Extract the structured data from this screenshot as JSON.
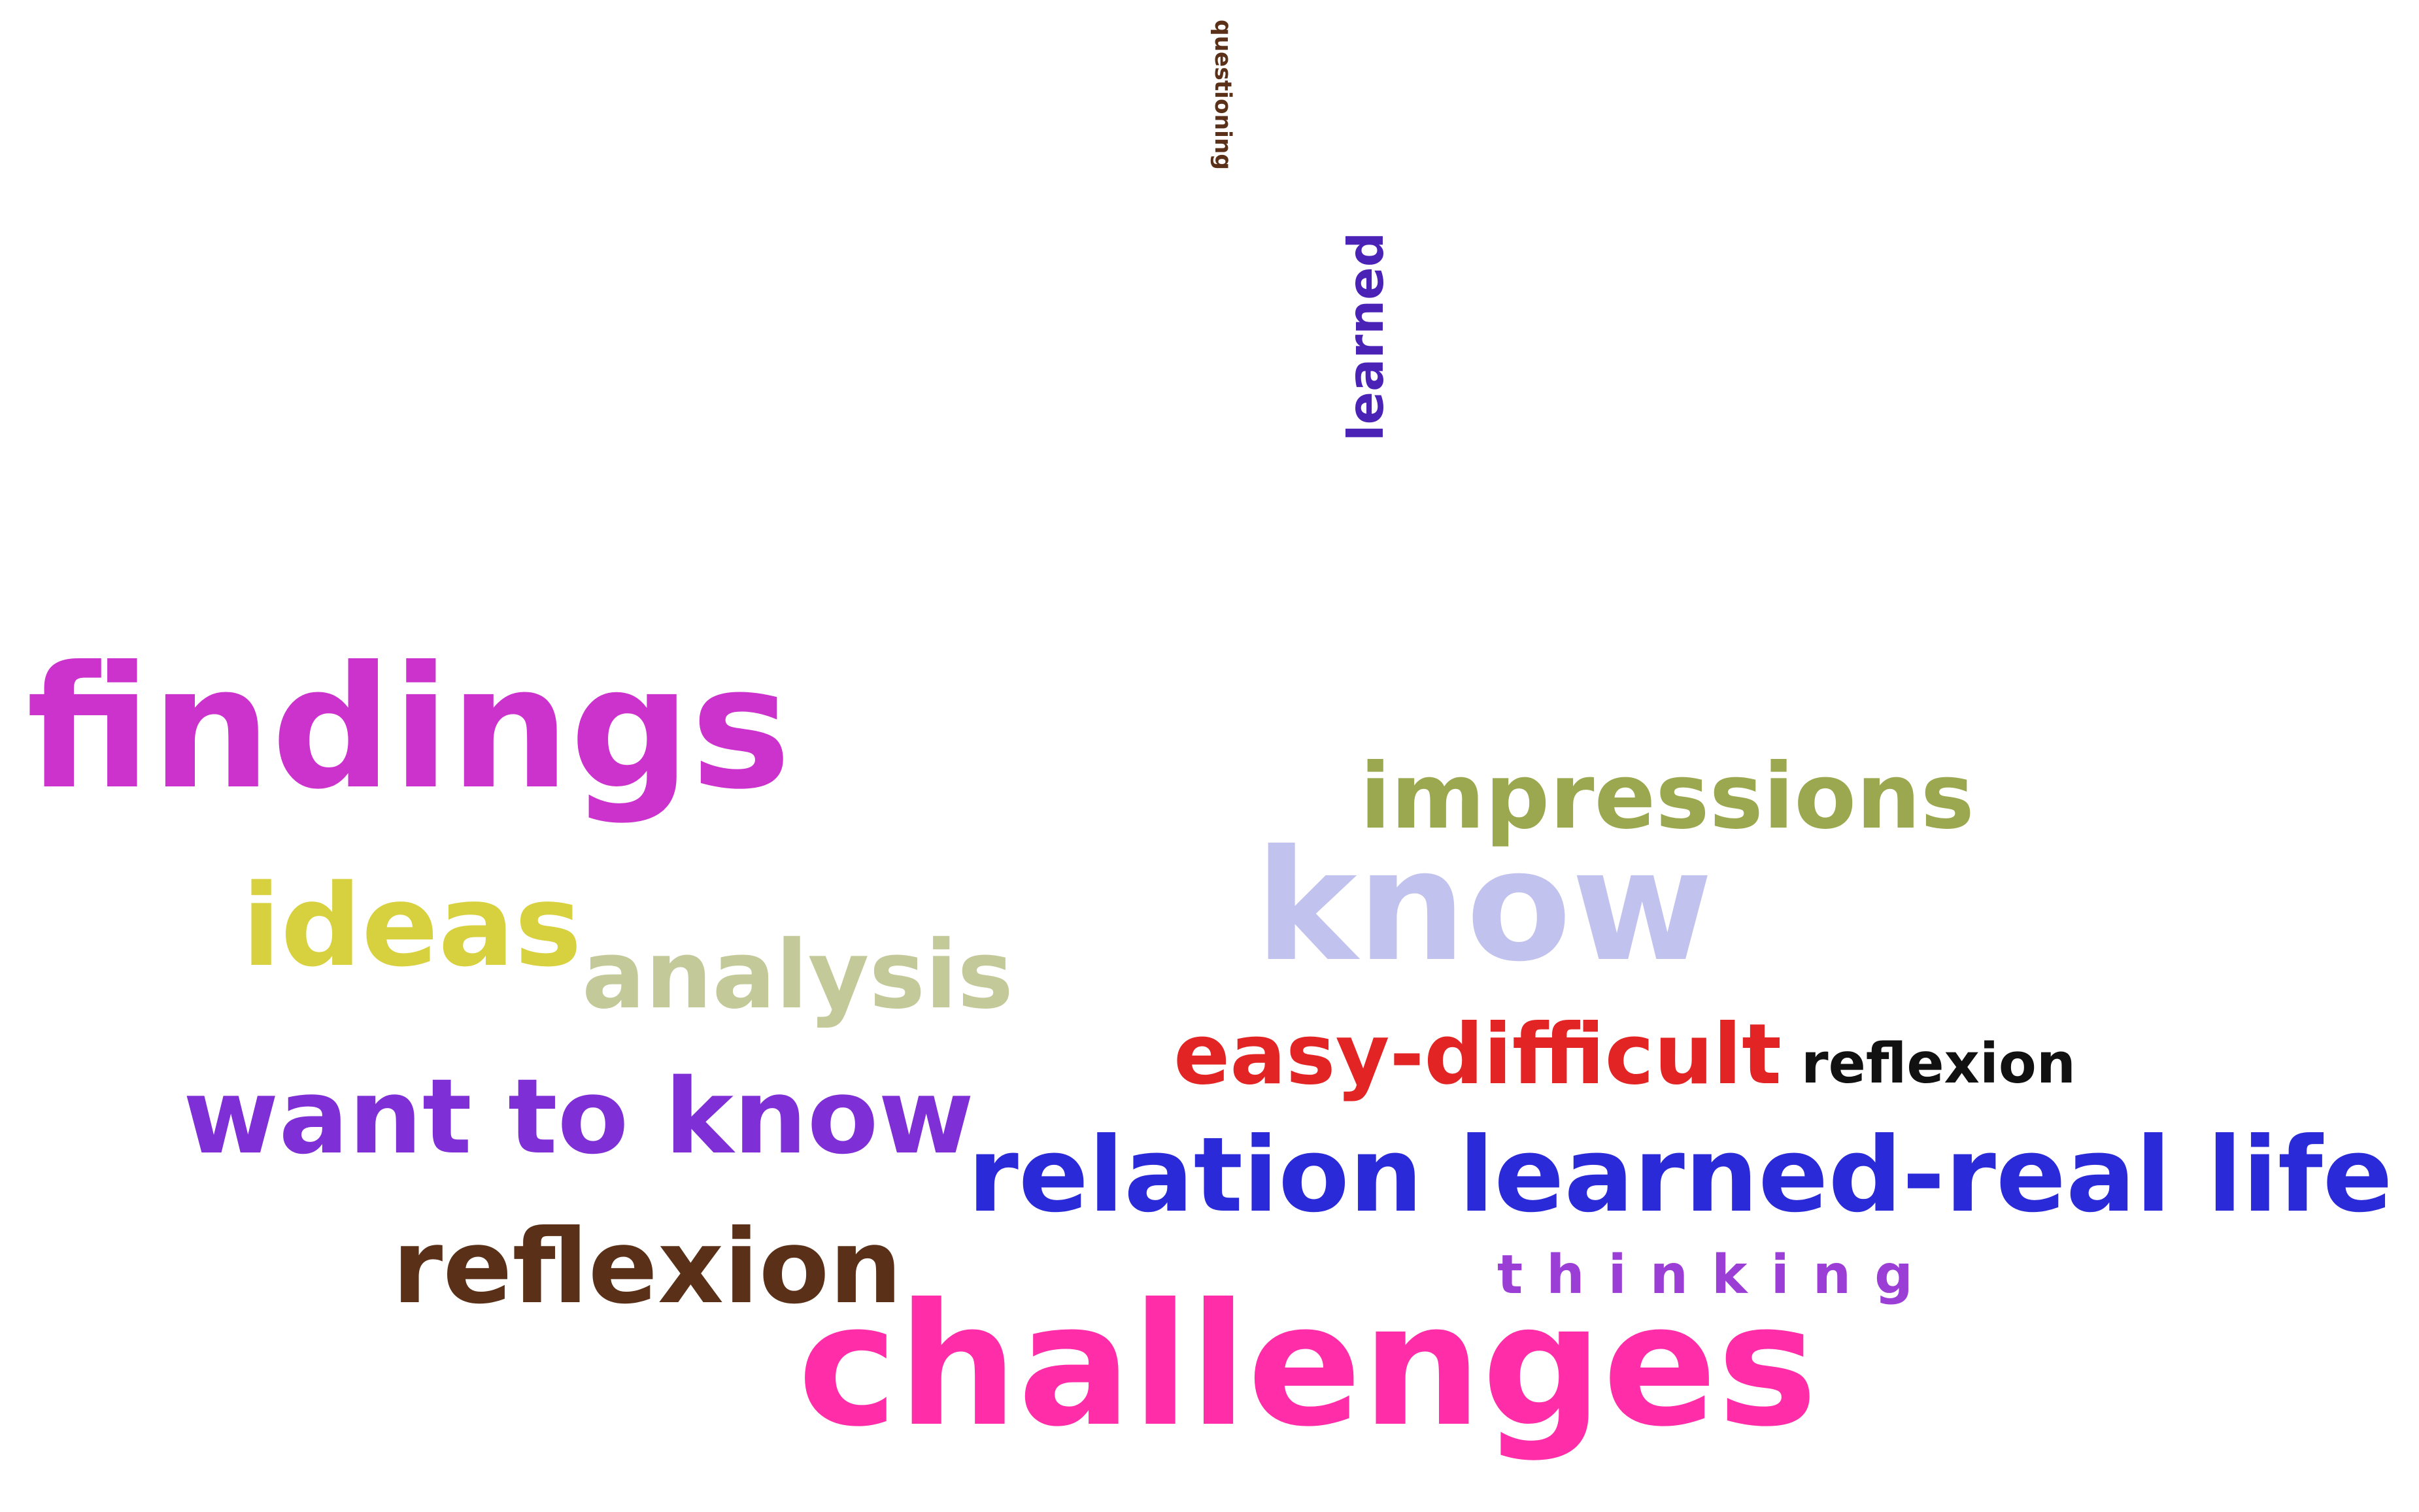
{
  "background": "#ffffff",
  "words": [
    {
      "id": "questioning",
      "text": "questioning",
      "color": "#5a3118",
      "orientation": "upside-down-vertical"
    },
    {
      "id": "learned_big",
      "text": "learned",
      "color": "#4a23b6",
      "orientation": "vertical"
    },
    {
      "id": "findings",
      "text": "findings",
      "color": "#cc33cc",
      "orientation": "horizontal"
    },
    {
      "id": "impressions",
      "text": "impressions",
      "color": "#9ba84f",
      "orientation": "horizontal"
    },
    {
      "id": "know",
      "text": "know",
      "color": "#c2c2ee",
      "orientation": "horizontal"
    },
    {
      "id": "ideas",
      "text": "ideas",
      "color": "#d8d13f",
      "orientation": "horizontal"
    },
    {
      "id": "analysis",
      "text": "analysis",
      "color": "#c4c99a",
      "orientation": "horizontal"
    },
    {
      "id": "easy_difficult",
      "text": "easy-difficult",
      "color": "#e22424",
      "orientation": "horizontal"
    },
    {
      "id": "reflexion_small",
      "text": "reflexion",
      "color": "#111111",
      "orientation": "horizontal"
    },
    {
      "id": "want_to_know",
      "text": "want to know",
      "color": "#7f2fd6",
      "orientation": "horizontal"
    },
    {
      "id": "relation",
      "text": "relation learned-real life",
      "color": "#2a2ad8",
      "orientation": "horizontal"
    },
    {
      "id": "reflexion_brown",
      "text": "reflexion",
      "color": "#5a3118",
      "orientation": "horizontal"
    },
    {
      "id": "thinking",
      "text": "thinking",
      "color": "#9a3ed6",
      "orientation": "horizontal"
    },
    {
      "id": "challenges",
      "text": "challenges",
      "color": "#ff2ea8",
      "orientation": "horizontal"
    }
  ]
}
